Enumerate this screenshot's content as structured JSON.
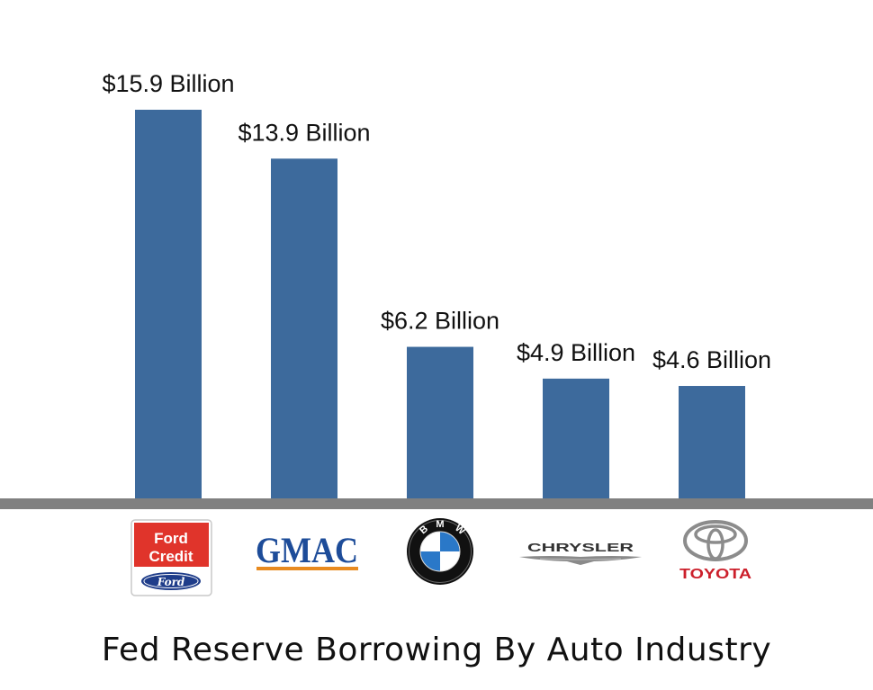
{
  "chart_data": {
    "type": "bar",
    "title": "Fed Reserve Borrowing By Auto Industry",
    "categories": [
      "Ford Credit",
      "GMAC",
      "BMW",
      "Chrysler",
      "Toyota"
    ],
    "values": [
      15.9,
      13.9,
      6.2,
      4.9,
      4.6
    ],
    "data_labels": [
      "$15.9 Billion",
      "$13.9 Billion",
      "$6.2 Billion",
      "$4.9 Billion",
      "$4.6 Billion"
    ],
    "unit": "Billion",
    "ylim": [
      0,
      15.9
    ],
    "grid": false,
    "legend": "none",
    "bar_color": "#3d6a9c",
    "axis_color": "#808080"
  },
  "logos": [
    {
      "name": "ford-credit",
      "lines": [
        "Ford",
        "Credit"
      ],
      "badge_text": "Ford",
      "color": "#e0342b",
      "badge_color": "#1f3d8a"
    },
    {
      "name": "gmac",
      "text": "GMAC",
      "color": "#1d4c99",
      "underline_color": "#e88a1f"
    },
    {
      "name": "bmw",
      "letters": [
        "B",
        "M",
        "W"
      ],
      "blue": "#2a78c8"
    },
    {
      "name": "chrysler",
      "text": "CHRYSLER",
      "color": "#333333"
    },
    {
      "name": "toyota",
      "text": "TOYOTA",
      "color": "#cc1f2b",
      "emblem_color": "#8c8c8c"
    }
  ]
}
